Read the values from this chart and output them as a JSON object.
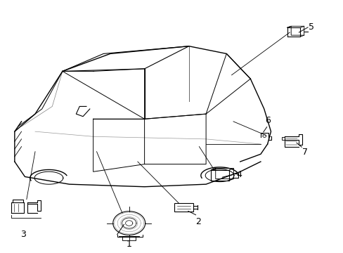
{
  "background_color": "#ffffff",
  "line_color": "#000000",
  "fig_width": 4.89,
  "fig_height": 3.6,
  "dpi": 100,
  "label_fontsize": 9,
  "lw_car": 1.0,
  "lw_part": 0.8
}
